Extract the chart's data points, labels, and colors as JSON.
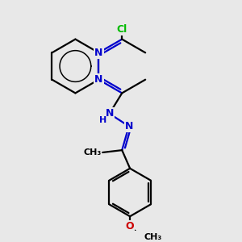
{
  "background_color": "#e8e8e8",
  "bond_color": "#000000",
  "N_color": "#0000cc",
  "Cl_color": "#00bb00",
  "O_color": "#cc0000",
  "line_width": 1.6,
  "figsize": [
    3.0,
    3.0
  ],
  "dpi": 100,
  "xlim": [
    0,
    10
  ],
  "ylim": [
    0,
    10
  ]
}
